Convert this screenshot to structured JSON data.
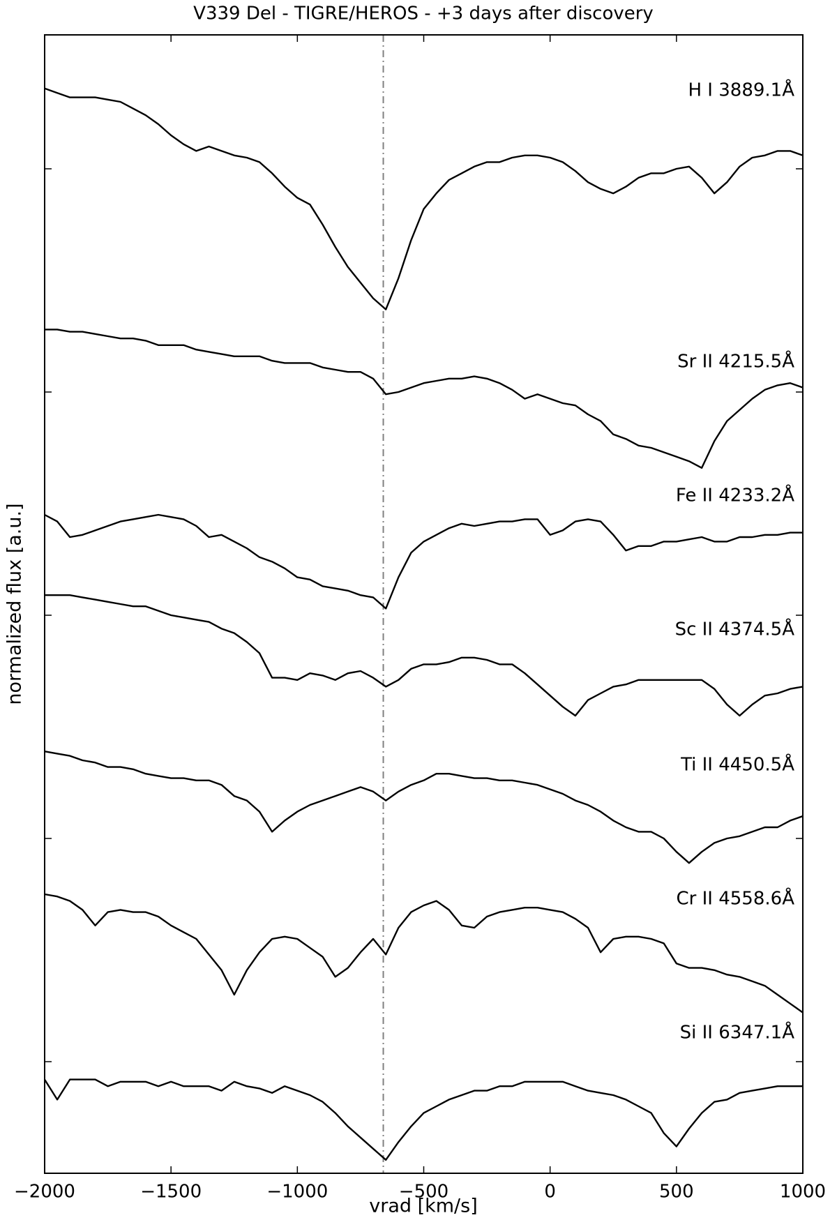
{
  "chart_data": {
    "type": "line",
    "title": "V339 Del - TIGRE/HEROS - +3 days after discovery",
    "xlabel": "vrad [km/s]",
    "ylabel": "normalized flux [a.u.]",
    "x": [
      -2000,
      -1950,
      -1900,
      -1850,
      -1800,
      -1750,
      -1700,
      -1650,
      -1600,
      -1550,
      -1500,
      -1450,
      -1400,
      -1350,
      -1300,
      -1250,
      -1200,
      -1150,
      -1100,
      -1050,
      -1000,
      -950,
      -900,
      -850,
      -800,
      -750,
      -700,
      -650,
      -600,
      -550,
      -500,
      -450,
      -400,
      -350,
      -300,
      -250,
      -200,
      -150,
      -100,
      -50,
      0,
      50,
      100,
      150,
      200,
      250,
      300,
      350,
      400,
      450,
      500,
      550,
      600,
      650,
      700,
      750,
      800,
      850,
      900,
      950,
      1000
    ],
    "series": [
      {
        "name": "H I 3889.1Å",
        "color": "#000000",
        "values": [
          5.36,
          5.34,
          5.32,
          5.32,
          5.32,
          5.31,
          5.3,
          5.27,
          5.24,
          5.2,
          5.15,
          5.11,
          5.08,
          5.1,
          5.08,
          5.06,
          5.05,
          5.03,
          4.98,
          4.92,
          4.87,
          4.84,
          4.75,
          4.65,
          4.56,
          4.49,
          4.42,
          4.37,
          4.51,
          4.68,
          4.82,
          4.89,
          4.95,
          4.98,
          5.01,
          5.03,
          5.03,
          5.05,
          5.06,
          5.06,
          5.05,
          5.03,
          4.99,
          4.94,
          4.91,
          4.89,
          4.92,
          4.96,
          4.98,
          4.98,
          5.0,
          5.01,
          4.96,
          4.89,
          4.94,
          5.01,
          5.05,
          5.06,
          5.08,
          5.08,
          5.06
        ]
      },
      {
        "name": "Sr II 4215.5Å",
        "color": "#000000",
        "values": [
          4.28,
          4.28,
          4.27,
          4.27,
          4.26,
          4.25,
          4.24,
          4.24,
          4.23,
          4.21,
          4.21,
          4.21,
          4.19,
          4.18,
          4.17,
          4.16,
          4.16,
          4.16,
          4.14,
          4.13,
          4.13,
          4.13,
          4.11,
          4.1,
          4.09,
          4.09,
          4.06,
          3.99,
          4.0,
          4.02,
          4.04,
          4.05,
          4.06,
          4.06,
          4.07,
          4.06,
          4.04,
          4.01,
          3.97,
          3.99,
          3.97,
          3.95,
          3.94,
          3.9,
          3.87,
          3.81,
          3.79,
          3.76,
          3.75,
          3.73,
          3.71,
          3.69,
          3.66,
          3.78,
          3.87,
          3.92,
          3.97,
          4.01,
          4.03,
          4.04,
          4.02
        ]
      },
      {
        "name": "Fe II 4233.2Å",
        "color": "#000000",
        "values": [
          3.45,
          3.42,
          3.35,
          3.36,
          3.38,
          3.4,
          3.42,
          3.43,
          3.44,
          3.45,
          3.44,
          3.43,
          3.4,
          3.35,
          3.36,
          3.33,
          3.3,
          3.26,
          3.24,
          3.21,
          3.17,
          3.16,
          3.13,
          3.12,
          3.11,
          3.09,
          3.08,
          3.03,
          3.17,
          3.28,
          3.33,
          3.36,
          3.39,
          3.41,
          3.4,
          3.41,
          3.42,
          3.42,
          3.43,
          3.43,
          3.36,
          3.38,
          3.42,
          3.43,
          3.42,
          3.36,
          3.29,
          3.31,
          3.31,
          3.33,
          3.33,
          3.34,
          3.35,
          3.33,
          3.33,
          3.35,
          3.35,
          3.36,
          3.36,
          3.37,
          3.37
        ]
      },
      {
        "name": "Sc II 4374.5Å",
        "color": "#000000",
        "values": [
          3.09,
          3.09,
          3.09,
          3.08,
          3.07,
          3.06,
          3.05,
          3.04,
          3.04,
          3.02,
          3.0,
          2.99,
          2.98,
          2.97,
          2.94,
          2.92,
          2.88,
          2.83,
          2.72,
          2.72,
          2.71,
          2.74,
          2.73,
          2.71,
          2.74,
          2.75,
          2.72,
          2.68,
          2.71,
          2.76,
          2.78,
          2.78,
          2.79,
          2.81,
          2.81,
          2.8,
          2.78,
          2.78,
          2.74,
          2.69,
          2.64,
          2.59,
          2.55,
          2.62,
          2.65,
          2.68,
          2.69,
          2.71,
          2.71,
          2.71,
          2.71,
          2.71,
          2.71,
          2.67,
          2.6,
          2.55,
          2.6,
          2.64,
          2.65,
          2.67,
          2.68
        ]
      },
      {
        "name": "Ti II 4450.5Å",
        "color": "#000000",
        "values": [
          2.39,
          2.38,
          2.37,
          2.35,
          2.34,
          2.32,
          2.32,
          2.31,
          2.29,
          2.28,
          2.27,
          2.27,
          2.26,
          2.26,
          2.24,
          2.19,
          2.17,
          2.12,
          2.03,
          2.08,
          2.12,
          2.15,
          2.17,
          2.19,
          2.21,
          2.23,
          2.21,
          2.17,
          2.21,
          2.24,
          2.26,
          2.29,
          2.29,
          2.28,
          2.27,
          2.27,
          2.26,
          2.26,
          2.25,
          2.24,
          2.22,
          2.2,
          2.17,
          2.15,
          2.12,
          2.08,
          2.05,
          2.03,
          2.03,
          2.0,
          1.94,
          1.89,
          1.94,
          1.98,
          2.0,
          2.01,
          2.03,
          2.05,
          2.05,
          2.08,
          2.1
        ]
      },
      {
        "name": "Cr II 4558.6Å",
        "color": "#000000",
        "values": [
          1.75,
          1.74,
          1.72,
          1.68,
          1.61,
          1.67,
          1.68,
          1.67,
          1.67,
          1.65,
          1.61,
          1.58,
          1.55,
          1.48,
          1.41,
          1.3,
          1.41,
          1.49,
          1.55,
          1.56,
          1.55,
          1.51,
          1.47,
          1.38,
          1.42,
          1.49,
          1.55,
          1.48,
          1.6,
          1.67,
          1.7,
          1.72,
          1.68,
          1.61,
          1.6,
          1.65,
          1.67,
          1.68,
          1.69,
          1.69,
          1.68,
          1.67,
          1.64,
          1.6,
          1.49,
          1.55,
          1.56,
          1.56,
          1.55,
          1.53,
          1.44,
          1.42,
          1.42,
          1.41,
          1.39,
          1.38,
          1.36,
          1.34,
          1.3,
          1.26,
          1.22
        ]
      },
      {
        "name": "Si II 6347.1Å",
        "color": "#000000",
        "values": [
          0.92,
          0.83,
          0.92,
          0.92,
          0.92,
          0.89,
          0.91,
          0.91,
          0.91,
          0.89,
          0.91,
          0.89,
          0.89,
          0.89,
          0.87,
          0.91,
          0.89,
          0.88,
          0.86,
          0.89,
          0.87,
          0.85,
          0.82,
          0.77,
          0.71,
          0.66,
          0.61,
          0.56,
          0.64,
          0.71,
          0.77,
          0.8,
          0.83,
          0.85,
          0.87,
          0.87,
          0.89,
          0.89,
          0.91,
          0.91,
          0.91,
          0.91,
          0.89,
          0.87,
          0.86,
          0.85,
          0.83,
          0.8,
          0.77,
          0.68,
          0.62,
          0.7,
          0.77,
          0.82,
          0.83,
          0.86,
          0.87,
          0.88,
          0.89,
          0.89,
          0.89
        ]
      }
    ],
    "xlim": [
      -2000,
      1000
    ],
    "xticks": [
      {
        "value": -2000,
        "label": "−2000"
      },
      {
        "value": -1500,
        "label": "−1500"
      },
      {
        "value": -1000,
        "label": "−1000"
      },
      {
        "value": -500,
        "label": "−500"
      },
      0,
      500,
      1000
    ],
    "ylim": [
      0.5,
      5.6
    ],
    "yticks": [
      1,
      2,
      3,
      4,
      5
    ],
    "vline": -660,
    "vline_color": "#808080"
  }
}
